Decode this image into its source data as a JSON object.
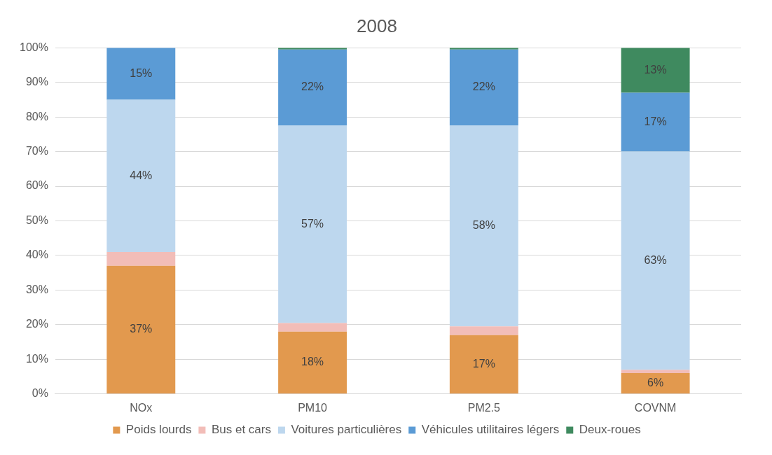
{
  "chart_data": {
    "type": "bar",
    "title": "2008",
    "stacked": true,
    "categories": [
      "NOx",
      "PM10",
      "PM2.5",
      "COVNM"
    ],
    "series": [
      {
        "name": "Poids lourds",
        "color": "#e2994e",
        "values": [
          37,
          18,
          17,
          6
        ],
        "value_labels": [
          "37%",
          "18%",
          "17%",
          "6%"
        ]
      },
      {
        "name": "Bus et cars",
        "color": "#f2bdb8",
        "values": [
          4,
          2.5,
          2.5,
          1
        ],
        "value_labels": [
          null,
          null,
          null,
          null
        ]
      },
      {
        "name": "Voitures particulières",
        "color": "#bdd7ee",
        "values": [
          44,
          57,
          58,
          63
        ],
        "value_labels": [
          "44%",
          "57%",
          "58%",
          "63%"
        ]
      },
      {
        "name": "Véhicules utilitaires légers",
        "color": "#5b9bd5",
        "values": [
          15,
          22,
          22,
          17
        ],
        "value_labels": [
          "15%",
          "22%",
          "22%",
          "17%"
        ]
      },
      {
        "name": "Deux-roues",
        "color": "#3f8a5f",
        "values": [
          0,
          0.5,
          0.5,
          13
        ],
        "value_labels": [
          null,
          null,
          null,
          "13%"
        ]
      }
    ],
    "ylim": [
      0,
      100
    ],
    "yticks": [
      {
        "value": 0,
        "label": "0%"
      },
      {
        "value": 10,
        "label": "10%"
      },
      {
        "value": 20,
        "label": "20%"
      },
      {
        "value": 30,
        "label": "30%"
      },
      {
        "value": 40,
        "label": "40%"
      },
      {
        "value": 50,
        "label": "50%"
      },
      {
        "value": 60,
        "label": "60%"
      },
      {
        "value": 70,
        "label": "70%"
      },
      {
        "value": 80,
        "label": "80%"
      },
      {
        "value": 90,
        "label": "90%"
      },
      {
        "value": 100,
        "label": "100%"
      }
    ],
    "grid": "y",
    "legend": "bottom"
  }
}
